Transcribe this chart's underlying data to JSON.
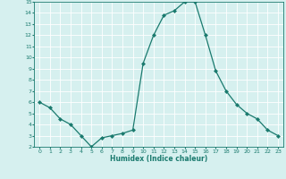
{
  "x": [
    0,
    1,
    2,
    3,
    4,
    5,
    6,
    7,
    8,
    9,
    10,
    11,
    12,
    13,
    14,
    15,
    16,
    17,
    18,
    19,
    20,
    21,
    22,
    23
  ],
  "y": [
    6.0,
    5.5,
    4.5,
    4.0,
    3.0,
    2.0,
    2.8,
    3.0,
    3.2,
    3.5,
    9.5,
    12.0,
    13.8,
    14.2,
    15.0,
    15.0,
    12.0,
    8.8,
    7.0,
    5.8,
    5.0,
    4.5,
    3.5,
    3.0
  ],
  "line_color": "#1a7a6e",
  "marker": "D",
  "marker_size": 2.0,
  "bg_color": "#d6f0ef",
  "grid_color": "#ffffff",
  "tick_color": "#1a7a6e",
  "label_color": "#1a7a6e",
  "xlabel": "Humidex (Indice chaleur)",
  "ylim": [
    2,
    15
  ],
  "xlim": [
    -0.5,
    23.5
  ],
  "yticks": [
    2,
    3,
    4,
    5,
    6,
    7,
    8,
    9,
    10,
    11,
    12,
    13,
    14,
    15
  ],
  "xticks": [
    0,
    1,
    2,
    3,
    4,
    5,
    6,
    7,
    8,
    9,
    10,
    11,
    12,
    13,
    14,
    15,
    16,
    17,
    18,
    19,
    20,
    21,
    22,
    23
  ],
  "tick_fontsize": 4.5,
  "xlabel_fontsize": 5.5,
  "linewidth": 0.9
}
